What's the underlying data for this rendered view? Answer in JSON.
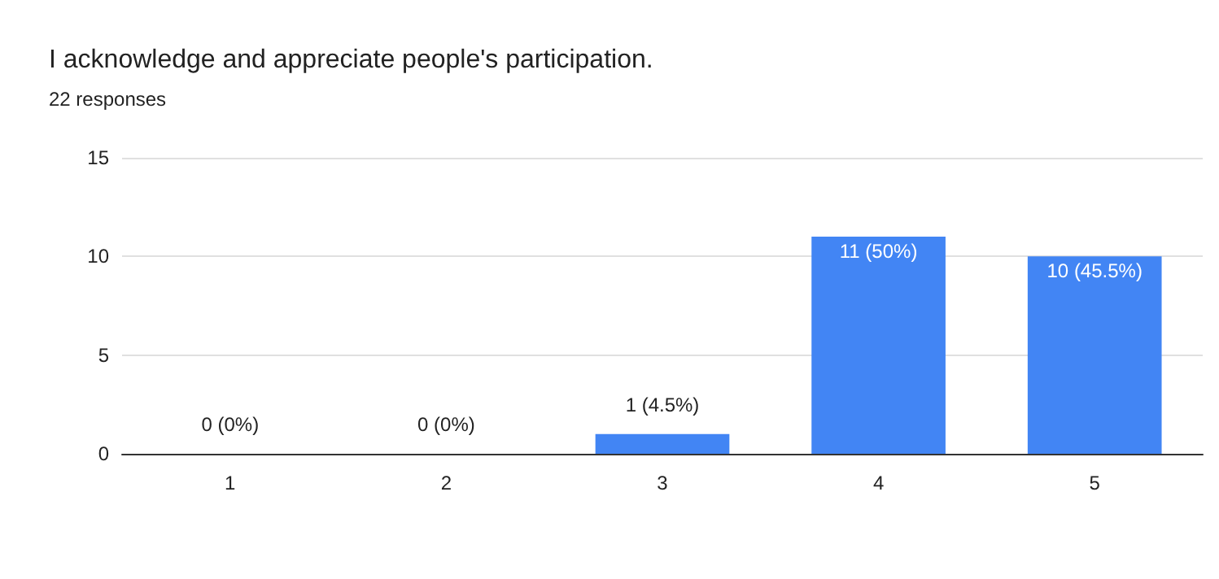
{
  "chart_data": {
    "type": "bar",
    "title": "I acknowledge and appreciate people's participation.",
    "subtitle": "22 responses",
    "categories": [
      "1",
      "2",
      "3",
      "4",
      "5"
    ],
    "values": [
      0,
      0,
      1,
      11,
      10
    ],
    "value_labels": [
      "0 (0%)",
      "0 (0%)",
      "1 (4.5%)",
      "11 (50%)",
      "10 (45.5%)"
    ],
    "color": "#4285f4",
    "ylim": [
      0,
      15
    ],
    "yticks": [
      0,
      5,
      10,
      15
    ],
    "grid": "y"
  }
}
